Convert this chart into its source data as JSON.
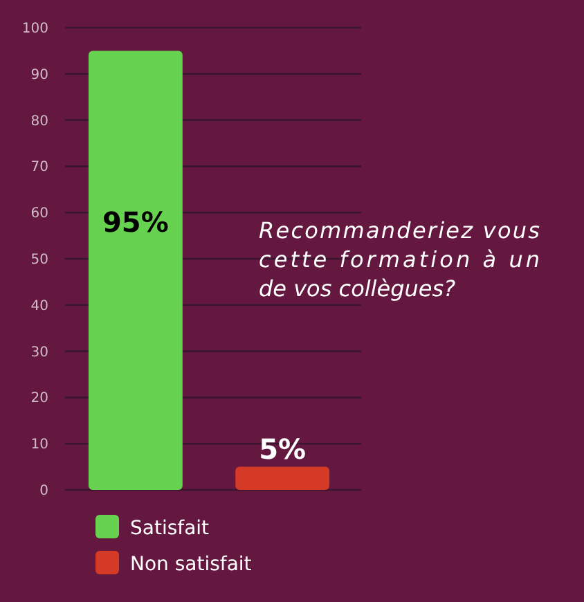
{
  "chart_data": {
    "type": "bar",
    "title": "Recommanderiez vous cette formation à un de vos collègues?",
    "categories": [
      null,
      null
    ],
    "series": [
      {
        "name": "Satisfait",
        "color": "#66d24f",
        "values": [
          95,
          null
        ],
        "value_labels": [
          "95%",
          null
        ]
      },
      {
        "name": "Non satisfait",
        "color": "#d43a26",
        "values": [
          null,
          5
        ],
        "value_labels": [
          null,
          "5%"
        ]
      }
    ],
    "ylim": [
      0,
      100
    ],
    "yticks": [
      0,
      10,
      20,
      30,
      40,
      50,
      60,
      70,
      80,
      90,
      100
    ],
    "grid": "y",
    "legend": "bottom left"
  }
}
